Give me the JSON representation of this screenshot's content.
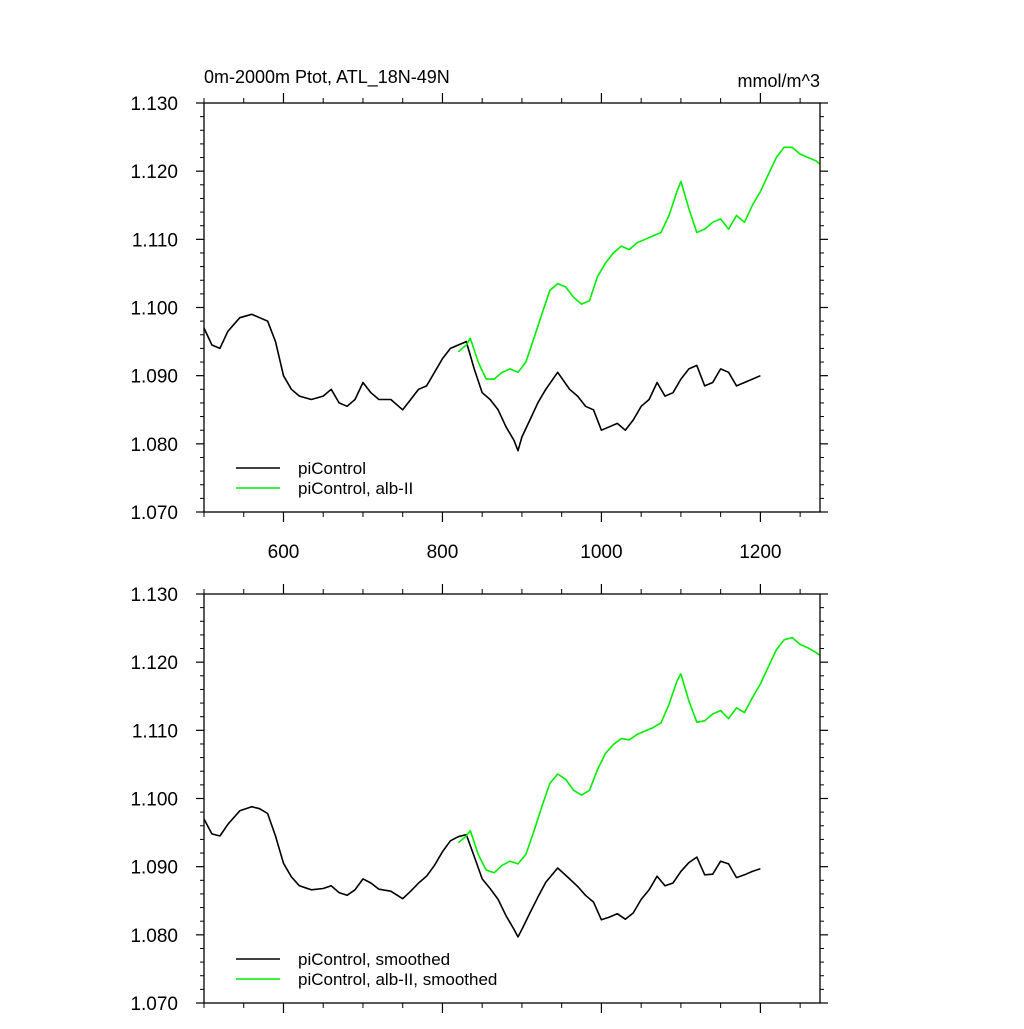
{
  "chart_data": [
    {
      "type": "line",
      "title": "0m-2000m Ptot, ATL_18N-49N",
      "units": "mmol/m^3",
      "xlim": [
        500,
        1275
      ],
      "ylim": [
        1.07,
        1.13
      ],
      "xticks": [
        600,
        800,
        1000,
        1200
      ],
      "xtick_labels": [
        "600",
        "800",
        "1000",
        "1200"
      ],
      "yticks": [
        1.07,
        1.08,
        1.09,
        1.1,
        1.11,
        1.12,
        1.13
      ],
      "ytick_labels": [
        "1.070",
        "1.080",
        "1.090",
        "1.100",
        "1.110",
        "1.120",
        "1.130"
      ],
      "legend_position": "bottom-left",
      "grid": false,
      "series": [
        {
          "name": "piControl",
          "color": "#000000",
          "x": [
            500,
            510,
            520,
            530,
            545,
            560,
            570,
            580,
            590,
            600,
            610,
            620,
            635,
            650,
            660,
            670,
            680,
            690,
            700,
            710,
            720,
            735,
            750,
            760,
            770,
            780,
            790,
            800,
            810,
            820,
            830,
            840,
            850,
            860,
            870,
            880,
            890,
            895,
            900,
            910,
            920,
            930,
            945,
            960,
            970,
            980,
            990,
            1000,
            1010,
            1020,
            1030,
            1040,
            1050,
            1060,
            1070,
            1080,
            1090,
            1100,
            1110,
            1120,
            1130,
            1140,
            1150,
            1160,
            1170,
            1180,
            1190,
            1200
          ],
          "y": [
            1.097,
            1.0945,
            1.094,
            1.0965,
            1.0985,
            1.099,
            1.0985,
            1.098,
            1.095,
            1.09,
            1.088,
            1.087,
            1.0865,
            1.087,
            1.088,
            1.086,
            1.0855,
            1.0865,
            1.089,
            1.0875,
            1.0865,
            1.0865,
            1.085,
            1.0865,
            1.088,
            1.0885,
            1.0905,
            1.0925,
            1.094,
            1.0945,
            1.095,
            1.091,
            1.0875,
            1.0865,
            1.085,
            1.0825,
            1.0805,
            1.079,
            1.081,
            1.0835,
            1.086,
            1.088,
            1.0905,
            1.088,
            1.087,
            1.0855,
            1.085,
            1.082,
            1.0825,
            1.083,
            1.082,
            1.0835,
            1.0855,
            1.0865,
            1.089,
            1.087,
            1.0875,
            1.0895,
            1.091,
            1.0915,
            1.0885,
            1.089,
            1.091,
            1.0905,
            1.0885,
            1.089,
            1.0895,
            1.09
          ]
        },
        {
          "name": "piControl, alb-II",
          "color": "#00ee00",
          "x": [
            820,
            830,
            835,
            845,
            855,
            865,
            875,
            885,
            895,
            905,
            915,
            925,
            935,
            945,
            955,
            965,
            975,
            985,
            995,
            1005,
            1015,
            1025,
            1035,
            1045,
            1055,
            1065,
            1075,
            1085,
            1095,
            1100,
            1110,
            1120,
            1130,
            1140,
            1150,
            1160,
            1170,
            1180,
            1190,
            1200,
            1210,
            1220,
            1230,
            1240,
            1250,
            1260,
            1270,
            1275
          ],
          "y": [
            1.0935,
            1.0945,
            1.0955,
            1.092,
            1.0895,
            1.0895,
            1.0905,
            1.091,
            1.0905,
            1.092,
            1.0955,
            1.099,
            1.1025,
            1.1035,
            1.103,
            1.1015,
            1.1005,
            1.101,
            1.1045,
            1.1065,
            1.108,
            1.109,
            1.1085,
            1.1095,
            1.11,
            1.1105,
            1.111,
            1.1135,
            1.117,
            1.1185,
            1.1145,
            1.111,
            1.1115,
            1.1125,
            1.113,
            1.1115,
            1.1135,
            1.1125,
            1.115,
            1.117,
            1.1195,
            1.122,
            1.1235,
            1.1235,
            1.1225,
            1.122,
            1.1215,
            1.121
          ]
        }
      ]
    },
    {
      "type": "line",
      "title": "",
      "units": "",
      "xlim": [
        500,
        1275
      ],
      "ylim": [
        1.07,
        1.13
      ],
      "xticks": [
        600,
        800,
        1000,
        1200
      ],
      "xtick_labels": [],
      "yticks": [
        1.07,
        1.08,
        1.09,
        1.1,
        1.11,
        1.12,
        1.13
      ],
      "ytick_labels": [
        "1.070",
        "1.080",
        "1.090",
        "1.100",
        "1.110",
        "1.120",
        "1.130"
      ],
      "legend_position": "bottom-left",
      "grid": false,
      "series": [
        {
          "name": "piControl, smoothed",
          "color": "#000000",
          "x": [
            500,
            510,
            520,
            530,
            545,
            560,
            570,
            580,
            590,
            600,
            610,
            620,
            635,
            650,
            660,
            670,
            680,
            690,
            700,
            710,
            720,
            735,
            750,
            760,
            770,
            780,
            790,
            800,
            810,
            820,
            830,
            840,
            850,
            860,
            870,
            880,
            890,
            895,
            900,
            910,
            920,
            930,
            945,
            960,
            970,
            980,
            990,
            1000,
            1010,
            1020,
            1030,
            1040,
            1050,
            1060,
            1070,
            1080,
            1090,
            1100,
            1110,
            1120,
            1130,
            1140,
            1150,
            1160,
            1170,
            1180,
            1190,
            1200
          ],
          "y": [
            1.097,
            1.0948,
            1.0945,
            1.0962,
            1.0982,
            1.0988,
            1.0985,
            1.0978,
            1.0945,
            1.0905,
            1.0885,
            1.0872,
            1.0866,
            1.0868,
            1.0872,
            1.0862,
            1.0858,
            1.0866,
            1.0882,
            1.0876,
            1.0867,
            1.0864,
            1.0853,
            1.0864,
            1.0876,
            1.0886,
            1.0902,
            1.0922,
            1.0938,
            1.0944,
            1.0947,
            1.0915,
            1.0882,
            1.0868,
            1.0852,
            1.0828,
            1.0808,
            1.0797,
            1.0808,
            1.0832,
            1.0855,
            1.0877,
            1.0898,
            1.0882,
            1.0871,
            1.0858,
            1.0848,
            1.0822,
            1.0826,
            1.0831,
            1.0823,
            1.0832,
            1.0852,
            1.0866,
            1.0886,
            1.0872,
            1.0876,
            1.0893,
            1.0906,
            1.0914,
            1.0888,
            1.0889,
            1.0908,
            1.0904,
            1.0884,
            1.0888,
            1.0893,
            1.0897
          ]
        },
        {
          "name": "piControl, alb-II, smoothed",
          "color": "#00ee00",
          "x": [
            820,
            830,
            835,
            845,
            855,
            865,
            875,
            885,
            895,
            905,
            915,
            925,
            935,
            945,
            955,
            965,
            975,
            985,
            995,
            1005,
            1015,
            1025,
            1035,
            1045,
            1055,
            1065,
            1075,
            1085,
            1095,
            1100,
            1110,
            1120,
            1130,
            1140,
            1150,
            1160,
            1170,
            1180,
            1190,
            1200,
            1210,
            1220,
            1230,
            1240,
            1250,
            1260,
            1270,
            1275
          ],
          "y": [
            1.0935,
            1.0945,
            1.0953,
            1.0918,
            1.0895,
            1.0891,
            1.0902,
            1.0908,
            1.0904,
            1.0918,
            1.0952,
            1.0988,
            1.1022,
            1.1036,
            1.1028,
            1.1012,
            1.1005,
            1.1012,
            1.1042,
            1.1066,
            1.1079,
            1.1088,
            1.1086,
            1.1094,
            1.1099,
            1.1104,
            1.1111,
            1.1138,
            1.1172,
            1.1183,
            1.1143,
            1.1112,
            1.1114,
            1.1124,
            1.1129,
            1.1117,
            1.1133,
            1.1126,
            1.1148,
            1.1168,
            1.1193,
            1.1218,
            1.1233,
            1.1236,
            1.1226,
            1.1221,
            1.1214,
            1.121
          ]
        }
      ]
    }
  ]
}
